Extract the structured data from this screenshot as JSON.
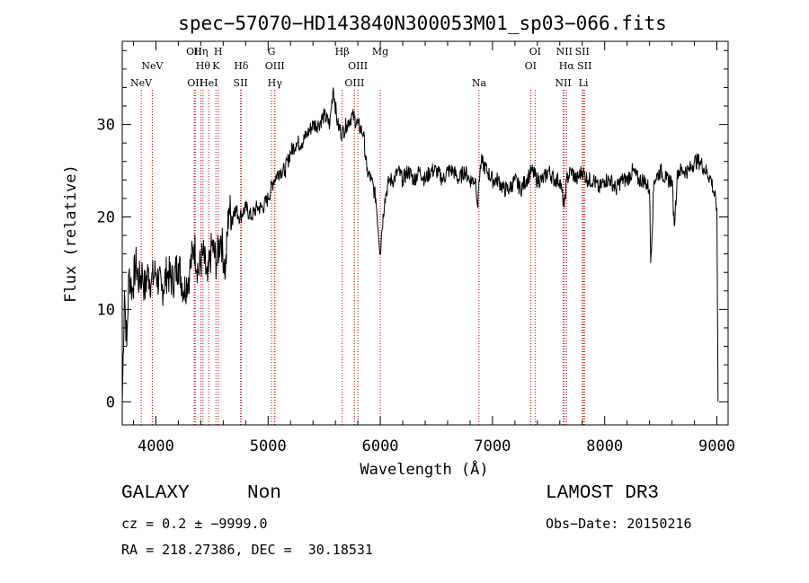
{
  "chart_data": {
    "type": "line",
    "title": "spec−57070−HD143840N300053M01_sp03−066.fits",
    "xlabel": "Wavelength (Å)",
    "ylabel": "Flux (relative)",
    "xlim": [
      3700,
      9100
    ],
    "ylim": [
      -2.5,
      39
    ],
    "xticks": [
      4000,
      5000,
      6000,
      7000,
      8000,
      9000
    ],
    "yticks": [
      0,
      10,
      20,
      30
    ],
    "series": [
      {
        "name": "flux",
        "x": [
          3700,
          3720,
          3740,
          3760,
          3790,
          3820,
          3850,
          3880,
          3900,
          3930,
          3960,
          4000,
          4050,
          4100,
          4150,
          4200,
          4250,
          4300,
          4340,
          4380,
          4420,
          4460,
          4500,
          4540,
          4580,
          4620,
          4650,
          4680,
          4700,
          4750,
          4800,
          4850,
          4900,
          4950,
          5000,
          5050,
          5100,
          5150,
          5200,
          5250,
          5300,
          5350,
          5400,
          5450,
          5500,
          5550,
          5580,
          5620,
          5660,
          5700,
          5750,
          5800,
          5850,
          5880,
          5920,
          5960,
          6000,
          6010,
          6040,
          6080,
          6120,
          6160,
          6200,
          6250,
          6300,
          6350,
          6400,
          6450,
          6500,
          6560,
          6600,
          6650,
          6700,
          6750,
          6800,
          6850,
          6870,
          6880,
          6900,
          6950,
          7000,
          7050,
          7100,
          7150,
          7200,
          7250,
          7300,
          7350,
          7400,
          7450,
          7500,
          7550,
          7600,
          7640,
          7660,
          7700,
          7750,
          7800,
          7850,
          7900,
          7950,
          8000,
          8050,
          8100,
          8150,
          8200,
          8250,
          8300,
          8350,
          8400,
          8410,
          8440,
          8500,
          8550,
          8600,
          8620,
          8650,
          8700,
          8750,
          8800,
          8850,
          8900,
          8950,
          9000,
          9010
        ],
        "y": [
          0,
          12,
          6,
          14,
          12,
          15,
          13,
          14,
          12,
          14,
          13,
          14,
          12,
          14,
          13,
          15,
          12,
          14,
          17,
          14,
          16,
          13,
          17,
          15,
          18,
          14,
          21,
          20,
          21,
          20,
          21,
          20,
          21,
          21,
          22,
          24,
          25,
          25,
          27,
          28,
          28,
          29,
          30,
          30,
          31,
          30,
          34,
          30,
          29,
          30,
          31,
          30,
          29,
          25,
          24,
          22,
          16,
          18,
          22,
          24,
          24,
          25,
          24,
          25,
          24,
          25,
          24,
          25,
          25,
          24,
          25,
          25,
          24,
          25,
          24,
          24,
          21,
          24,
          26,
          25,
          24,
          24,
          23,
          23,
          24,
          23,
          24,
          25,
          24,
          24,
          25,
          24,
          24,
          21,
          24,
          25,
          24,
          25,
          24,
          24,
          23,
          24,
          24,
          23,
          24,
          24,
          25,
          24,
          24,
          23,
          15,
          24,
          25,
          24,
          24,
          19,
          25,
          25,
          25,
          26,
          26,
          25,
          24,
          21,
          0
        ]
      }
    ],
    "lines": [
      {
        "label": "NeV",
        "x": 3869,
        "row": 3
      },
      {
        "label": "NeV",
        "x": 3968,
        "row": 2
      },
      {
        "label": "OII",
        "x": 4341,
        "row": 1
      },
      {
        "label": "OII",
        "x": 4350,
        "row": 3
      },
      {
        "label": "Hη",
        "x": 4400,
        "row": 1
      },
      {
        "label": "Hθ",
        "x": 4420,
        "row": 2
      },
      {
        "label": "HeI",
        "x": 4471,
        "row": 3
      },
      {
        "label": "H",
        "x": 4555,
        "row": 1
      },
      {
        "label": "K",
        "x": 4535,
        "row": 2
      },
      {
        "label": "SII",
        "x": 4755,
        "row": 3
      },
      {
        "label": "Hδ",
        "x": 4760,
        "row": 2
      },
      {
        "label": "G",
        "x": 5030,
        "row": 1
      },
      {
        "label": "OIII",
        "x": 5060,
        "row": 2
      },
      {
        "label": "Hγ",
        "x": 5060,
        "row": 3
      },
      {
        "label": "Hβ",
        "x": 5660,
        "row": 1
      },
      {
        "label": "OIII",
        "x": 5800,
        "row": 2
      },
      {
        "label": "OIII",
        "x": 5770,
        "row": 3
      },
      {
        "label": "Mg",
        "x": 6000,
        "row": 1
      },
      {
        "label": "Na",
        "x": 6880,
        "row": 3
      },
      {
        "label": "OI",
        "x": 7380,
        "row": 1
      },
      {
        "label": "OI",
        "x": 7340,
        "row": 2
      },
      {
        "label": "NII",
        "x": 7640,
        "row": 1
      },
      {
        "label": "Hα",
        "x": 7660,
        "row": 2
      },
      {
        "label": "NII",
        "x": 7630,
        "row": 3
      },
      {
        "label": "SII",
        "x": 7800,
        "row": 1
      },
      {
        "label": "SII",
        "x": 7820,
        "row": 2
      },
      {
        "label": "Li",
        "x": 7810,
        "row": 3
      }
    ]
  },
  "footer": {
    "class_label": "GALAXY",
    "subclass_label": "Non",
    "survey_label": "LAMOST DR3",
    "cz_text": "cz = 0.2 ± −9999.0",
    "obs_date_text": "Obs−Date: 20150216",
    "coords_text": "RA = 218.27386, DEC =  30.18531"
  },
  "colors": {
    "spectrum": "#000000",
    "line_marker": "#c00000",
    "axes": "#000000"
  }
}
